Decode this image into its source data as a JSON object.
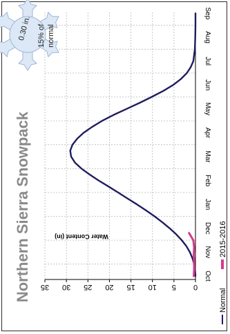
{
  "chart_data": {
    "type": "line",
    "title": "Northern Sierra Snowpack",
    "ylabel": "Water Content (in)",
    "xlabel": "",
    "categories": [
      "Oct",
      "Nov",
      "Dec",
      "Jan",
      "Feb",
      "Mar",
      "Apr",
      "May",
      "Jun",
      "Jul",
      "Aug",
      "Sep"
    ],
    "ylim": [
      0,
      35
    ],
    "yticks": [
      0,
      5,
      10,
      15,
      20,
      25,
      30,
      35
    ],
    "grid": true,
    "orientation": "rotated 90° clockwise",
    "legend_position": "bottom-right (rotated)",
    "series": [
      {
        "name": "Normal",
        "color": "#1f1d5e",
        "x": [
          0.0,
          0.25,
          0.5,
          0.75,
          1.0,
          1.25,
          1.5,
          1.75,
          2.0,
          2.25,
          2.5,
          2.75,
          3.0,
          3.25,
          3.5,
          3.75,
          4.0,
          4.25,
          4.5,
          4.75,
          5.0,
          5.25,
          5.5,
          5.75,
          6.0,
          6.25,
          6.5,
          6.75,
          7.0,
          7.25,
          7.5,
          7.75,
          8.0,
          8.25,
          8.5,
          8.75,
          9.0,
          9.5,
          10.0,
          10.5,
          11.0
        ],
        "values": [
          0.0,
          0.1,
          0.3,
          0.7,
          1.3,
          2.1,
          3.2,
          4.5,
          6.0,
          7.7,
          9.5,
          11.5,
          13.6,
          15.8,
          18.0,
          20.2,
          22.5,
          24.6,
          26.5,
          28.0,
          28.9,
          29.1,
          28.6,
          27.5,
          26.0,
          24.0,
          21.7,
          19.0,
          16.0,
          13.0,
          10.2,
          7.5,
          5.2,
          3.4,
          2.0,
          1.1,
          0.5,
          0.15,
          0.05,
          0.0,
          0.0
        ]
      },
      {
        "name": "2015-2016",
        "color": "#d63a8a",
        "x": [
          0.0,
          0.3,
          0.6,
          0.9,
          1.2,
          1.5,
          1.8
        ],
        "values": [
          0.4,
          0.3,
          0.3,
          0.4,
          0.3,
          0.5,
          1.5
        ]
      }
    ]
  },
  "badge": {
    "line1": "0.30 in.",
    "line2": "15% of",
    "line3": "normal"
  }
}
